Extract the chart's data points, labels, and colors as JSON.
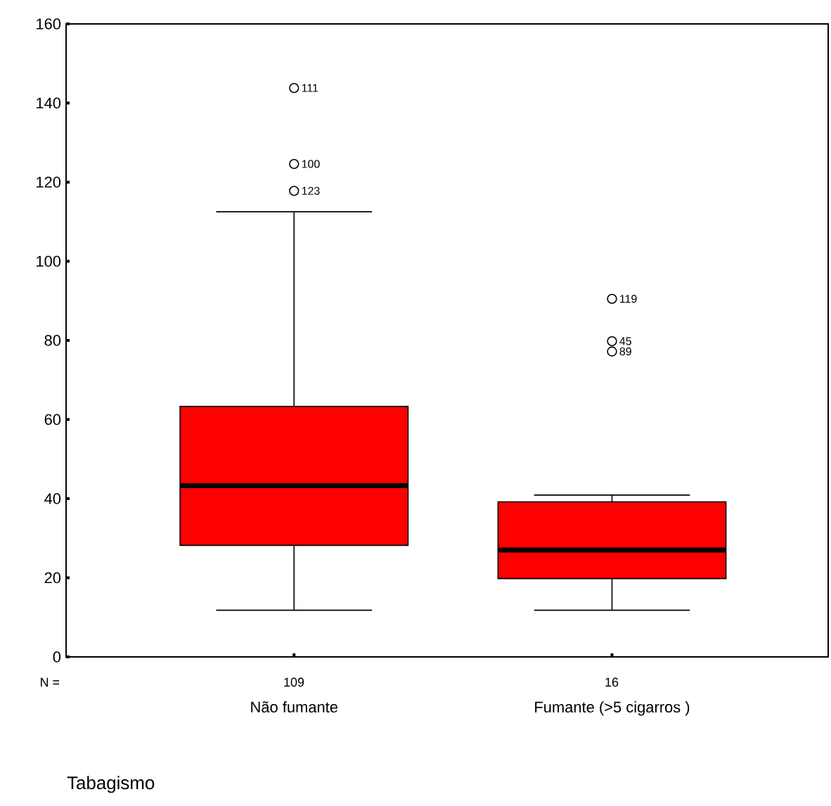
{
  "chart_data": {
    "type": "box",
    "categories": [
      "Não fumante",
      "Fumante (>5 cigarros )"
    ],
    "color": "#ff0000",
    "boxes": [
      {
        "low": 11.8,
        "q1": 28.2,
        "median": 43.3,
        "q3": 63.3,
        "high": 112.5,
        "outliers": [
          143.8,
          124.6,
          117.8
        ]
      },
      {
        "low": 11.8,
        "q1": 19.8,
        "median": 27,
        "q3": 39.2,
        "high": 40.9,
        "outliers": [
          90.5,
          79.8,
          77.2
        ]
      }
    ],
    "ylim": [
      0,
      160
    ],
    "yticks": [
      0,
      20,
      40,
      60,
      80,
      100,
      120,
      140,
      160
    ],
    "marker": "circle",
    "annotations": [
      "N =",
      "109",
      "16",
      "111",
      "100",
      "123",
      "119",
      "45",
      "89",
      "Tabagismo"
    ]
  }
}
